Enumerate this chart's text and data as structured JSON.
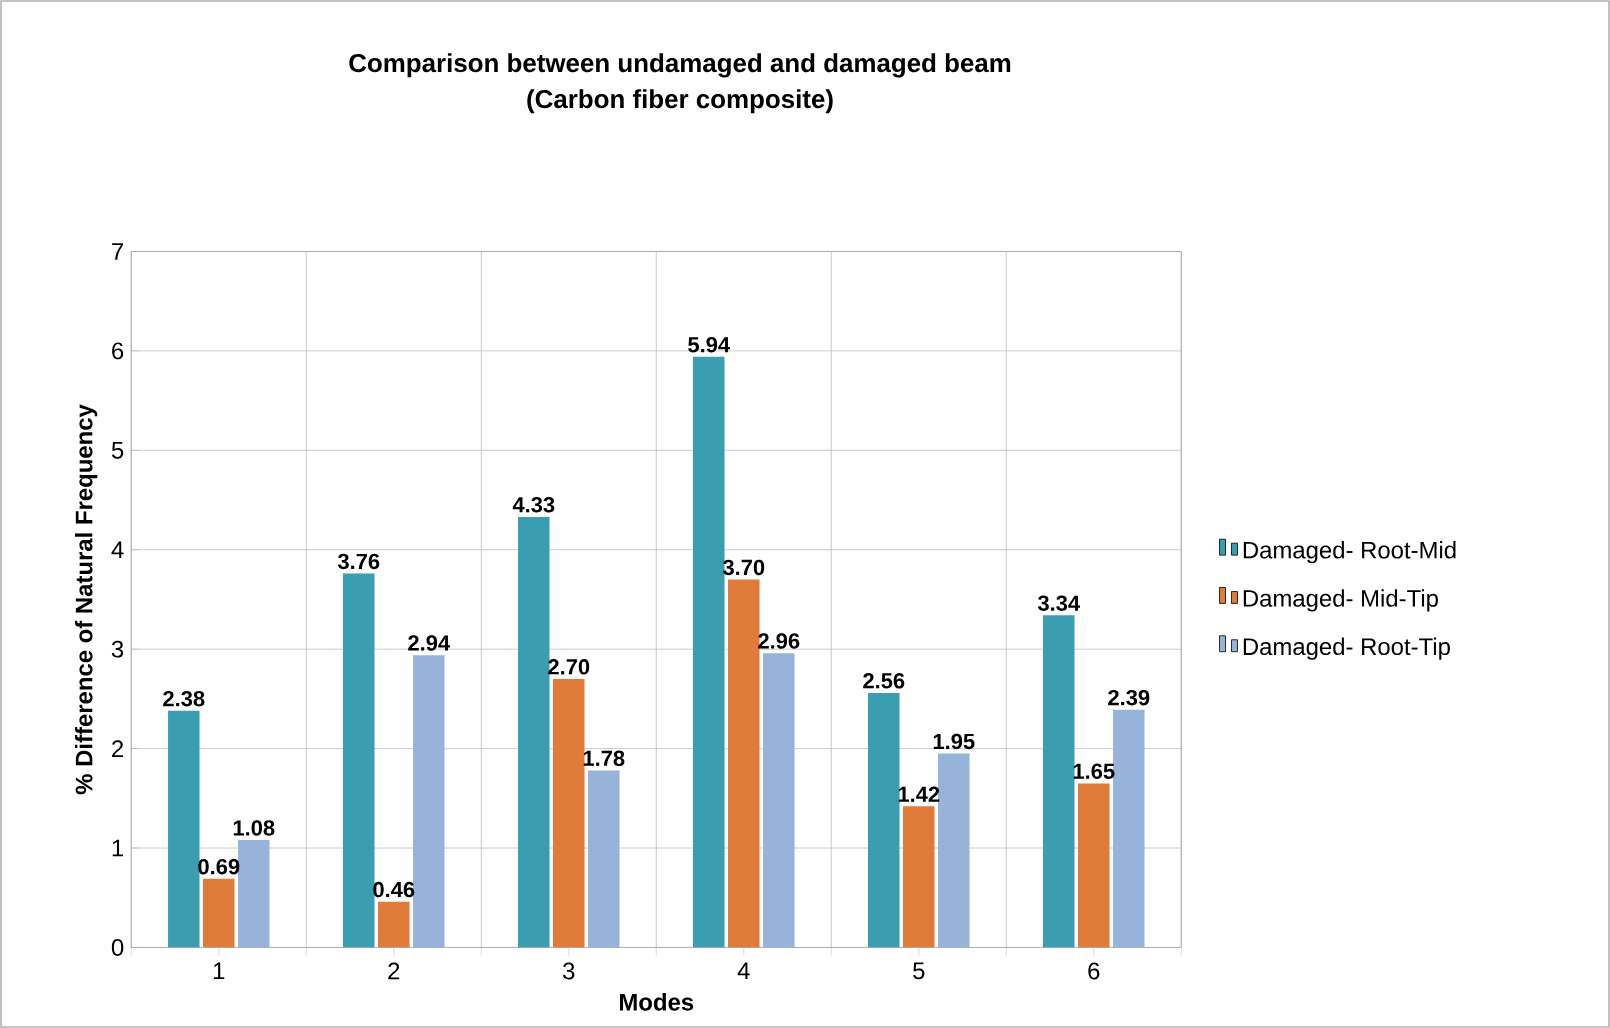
{
  "chart_data": {
    "type": "bar",
    "title": "Comparison between undamaged and damaged beam",
    "subtitle": "(Carbon fiber composite)",
    "xlabel": "Modes",
    "ylabel": "% Difference of Natural  Frequency",
    "categories": [
      "1",
      "2",
      "3",
      "4",
      "5",
      "6"
    ],
    "series": [
      {
        "name": "Damaged- Root-Mid",
        "color": "#3a9db0",
        "values": [
          2.38,
          3.76,
          4.33,
          5.94,
          2.56,
          3.34
        ],
        "value_labels": [
          "2.38",
          "3.76",
          "4.33",
          "5.94",
          "2.56",
          "3.34"
        ]
      },
      {
        "name": "Damaged- Mid-Tip",
        "color": "#e07b39",
        "values": [
          0.69,
          0.46,
          2.7,
          3.7,
          1.42,
          1.65
        ],
        "value_labels": [
          "0.69",
          "0.46",
          "2.70",
          "3.70",
          "1.42",
          "1.65"
        ]
      },
      {
        "name": "Damaged- Root-Tip",
        "color": "#98b3d9",
        "values": [
          1.08,
          2.94,
          1.78,
          2.96,
          1.95,
          2.39
        ],
        "value_labels": [
          "1.08",
          "2.94",
          "1.78",
          "2.96",
          "1.95",
          "2.39"
        ]
      }
    ],
    "ylim": [
      0,
      7
    ],
    "yticks": [
      0,
      1,
      2,
      3,
      4,
      5,
      6,
      7
    ],
    "grid": true,
    "legend": "right"
  }
}
